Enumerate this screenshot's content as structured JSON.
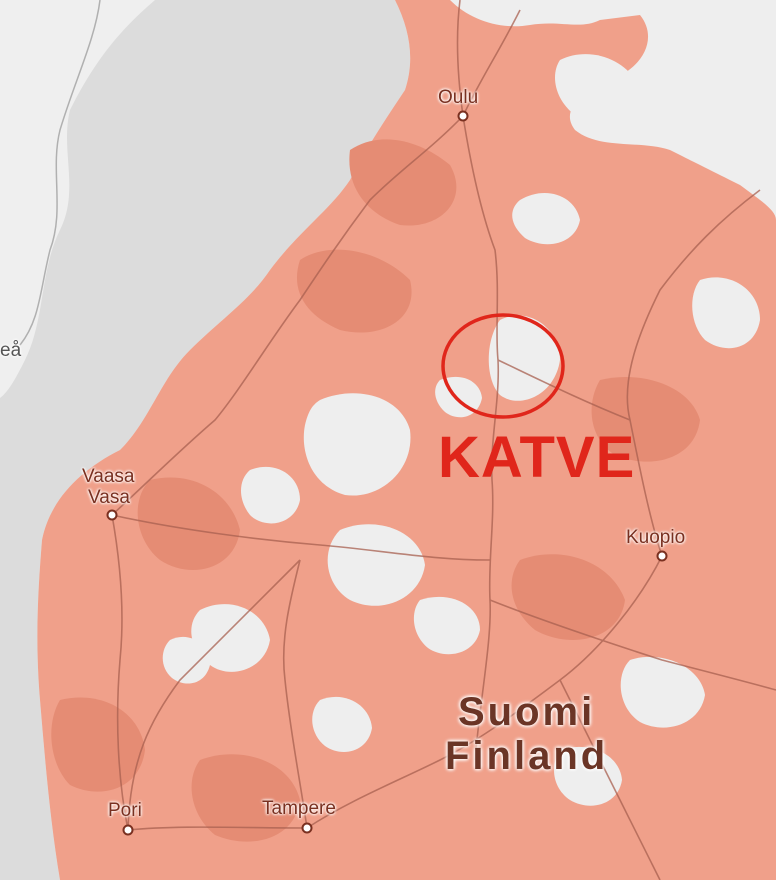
{
  "map": {
    "colors": {
      "water": "#dcdcdc",
      "land_no_coverage": "#eeeeee",
      "coverage": "#f0a08a",
      "coverage_dark": "#e58c74",
      "roads": "#a86050",
      "city_label": "#7a3020",
      "annotation_red": "#e0261b"
    },
    "cities": [
      {
        "id": "oulu",
        "name": "Oulu"
      },
      {
        "id": "vaasa",
        "name_fi": "Vaasa",
        "name_sv": "Vasa"
      },
      {
        "id": "kuopio",
        "name": "Kuopio"
      },
      {
        "id": "pori",
        "name": "Pori"
      },
      {
        "id": "tampere",
        "name": "Tampere"
      },
      {
        "id": "umea",
        "name": "eå"
      }
    ],
    "country": {
      "line1": "Suomi",
      "line2": "Finland"
    },
    "annotation": {
      "label": "KATVE",
      "shape": "circle"
    }
  }
}
